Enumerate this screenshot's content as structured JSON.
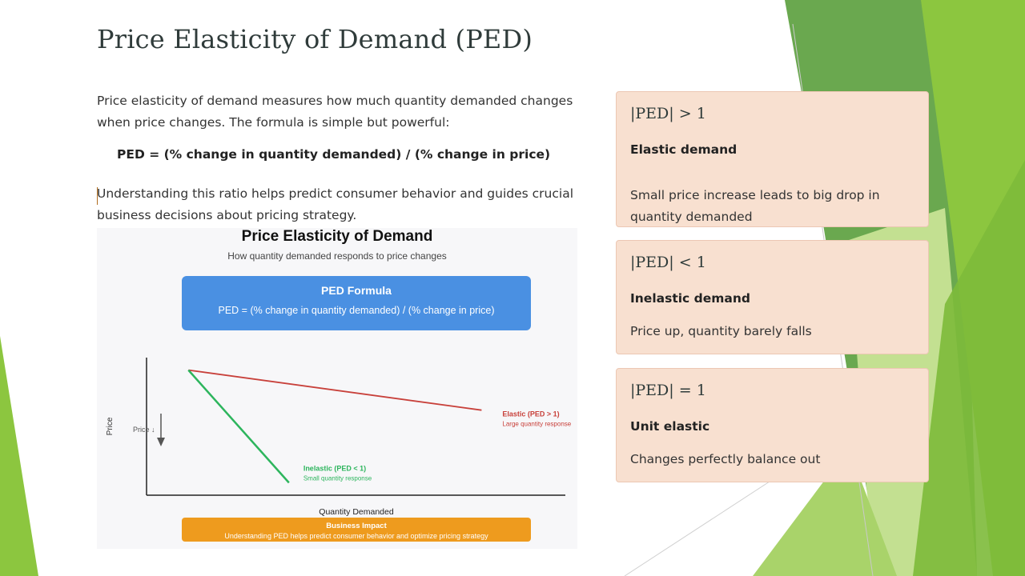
{
  "slide": {
    "title": "Price Elasticity of Demand (PED)",
    "intro": "Price elasticity of demand measures how much quantity demanded changes when price changes. The formula is simple but powerful:",
    "formula": "PED = (% change in quantity demanded) / (% change in price)",
    "conclusion": "Understanding this ratio helps predict consumer behavior and guides crucial business decisions about pricing strategy."
  },
  "figure": {
    "title": "Price Elasticity of Demand",
    "subtitle": "How quantity demanded responds to price changes",
    "formula_box": {
      "title": "PED Formula",
      "text": "PED = (% change in quantity demanded) / (% change in price)"
    },
    "impact_box": {
      "title": "Business Impact",
      "text": "Understanding PED helps predict consumer behavior and optimize pricing strategy"
    }
  },
  "chart_data": {
    "type": "line",
    "xlabel": "Quantity Demanded",
    "ylabel": "Price",
    "arrow_label": "Price ↓",
    "series": [
      {
        "name": "Elastic (PED > 1)",
        "note": "Large quantity response",
        "color": "#c8413b",
        "points": [
          [
            1,
            10
          ],
          [
            8,
            6.8
          ]
        ]
      },
      {
        "name": "Inelastic (PED < 1)",
        "note": "Small quantity response",
        "color": "#2db55d",
        "points": [
          [
            1,
            10
          ],
          [
            3.4,
            1
          ]
        ]
      }
    ]
  },
  "cards": [
    {
      "symbol": "|PED| > 1",
      "label": "Elastic demand",
      "description": "Small price increase leads to big drop in quantity demanded"
    },
    {
      "symbol": "|PED| < 1",
      "label": "Inelastic demand",
      "description": "Price up, quantity barely falls"
    },
    {
      "symbol": "|PED| = 1",
      "label": "Unit elastic",
      "description": "Changes perfectly balance out"
    }
  ],
  "colors": {
    "card_bg": "#f8e0d0",
    "formula_box": "#4a90e2",
    "impact_box": "#ee9b1e",
    "accent_green": "#8cc63f",
    "dark_green": "#6aa84f"
  }
}
